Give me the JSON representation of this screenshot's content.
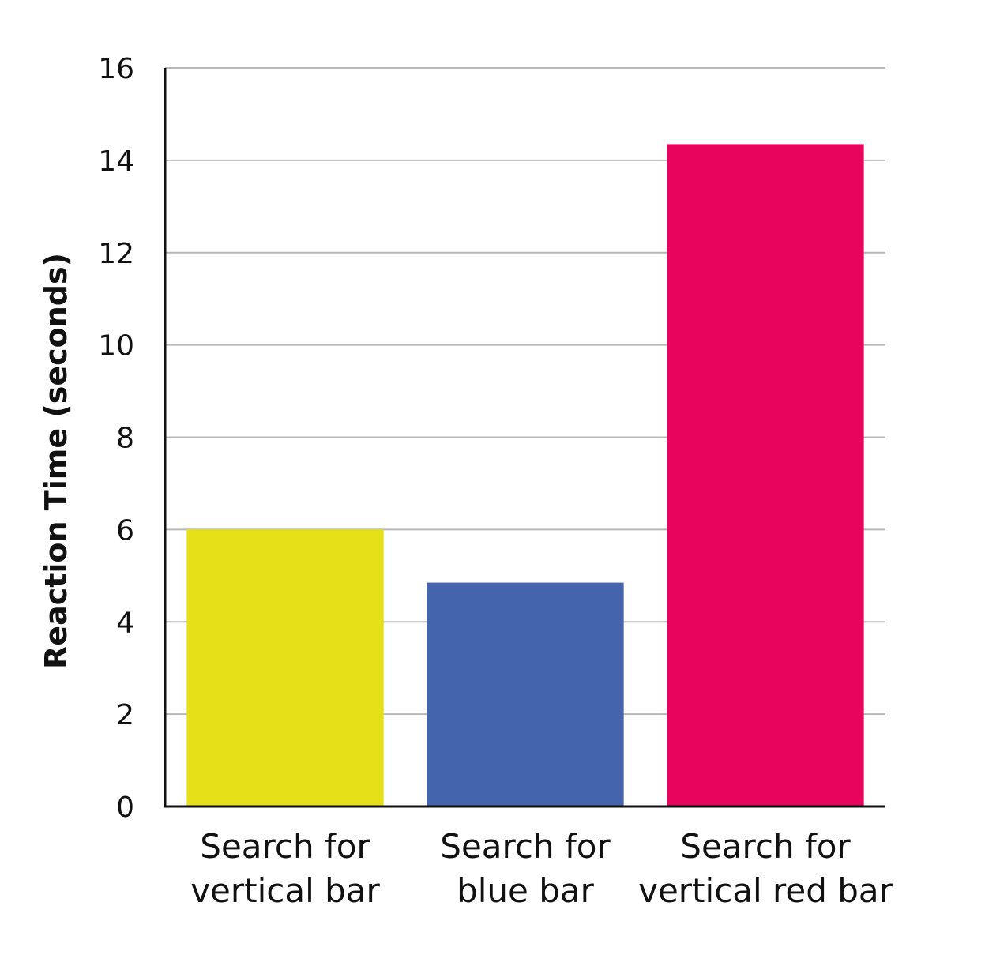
{
  "chart_data": {
    "type": "bar",
    "categories": [
      [
        "Search for",
        "vertical bar"
      ],
      [
        "Search for",
        "blue bar"
      ],
      [
        "Search for",
        "vertical red bar"
      ]
    ],
    "values": [
      6.0,
      4.85,
      14.35
    ],
    "colors": [
      "#e6e018",
      "#4464ad",
      "#e8035c"
    ],
    "title": "",
    "xlabel": "",
    "ylabel": "Reaction Time (seconds)",
    "ylim": [
      0,
      16
    ],
    "yticks": [
      0,
      2,
      4,
      6,
      8,
      10,
      12,
      14,
      16
    ],
    "grid": true,
    "legend": "none"
  }
}
